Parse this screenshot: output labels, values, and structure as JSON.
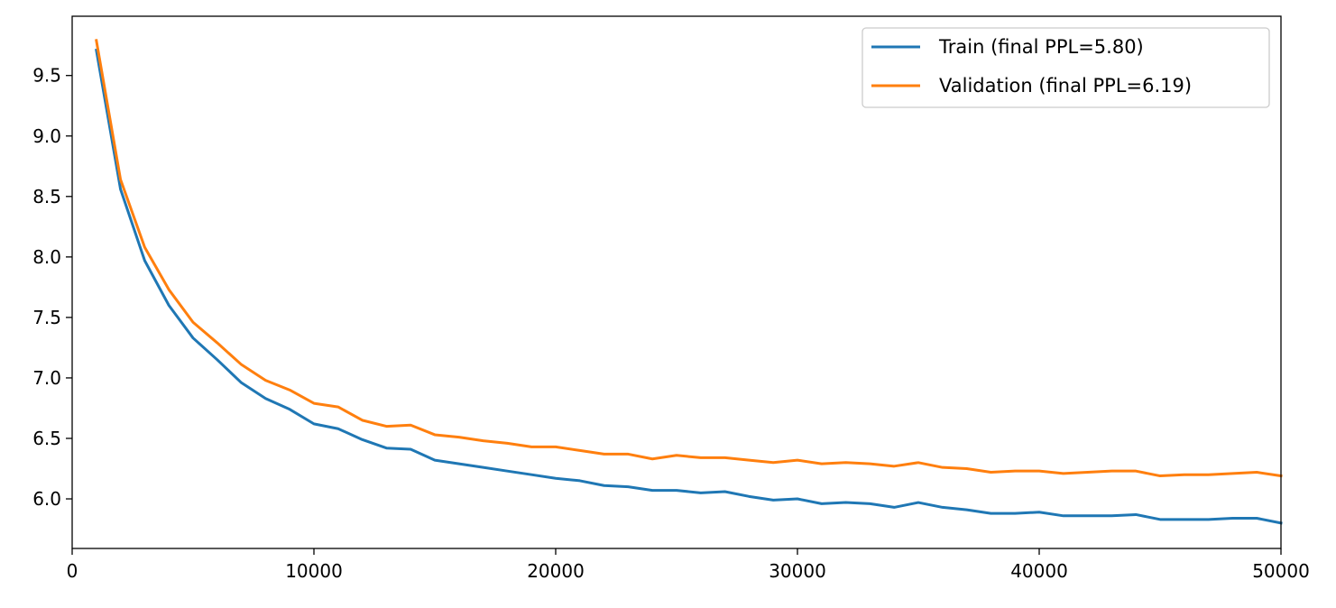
{
  "chart_data": {
    "type": "line",
    "title": "",
    "xlabel": "",
    "ylabel": "",
    "xlim": [
      0,
      50000
    ],
    "ylim": [
      5.59,
      9.99
    ],
    "grid": false,
    "legend_position": "top-right",
    "xticks": [
      0,
      10000,
      20000,
      30000,
      40000,
      50000
    ],
    "yticks": [
      6.0,
      6.5,
      7.0,
      7.5,
      8.0,
      8.5,
      9.0,
      9.5
    ],
    "xtick_labels": [
      "0",
      "10000",
      "20000",
      "30000",
      "40000",
      "50000"
    ],
    "ytick_labels": [
      "6.0",
      "6.5",
      "7.0",
      "7.5",
      "8.0",
      "8.5",
      "9.0",
      "9.5"
    ],
    "x": [
      1000,
      2000,
      3000,
      4000,
      5000,
      6000,
      7000,
      8000,
      9000,
      10000,
      11000,
      12000,
      13000,
      14000,
      15000,
      16000,
      17000,
      18000,
      19000,
      20000,
      21000,
      22000,
      23000,
      24000,
      25000,
      26000,
      27000,
      28000,
      29000,
      30000,
      31000,
      32000,
      33000,
      34000,
      35000,
      36000,
      37000,
      38000,
      39000,
      40000,
      41000,
      42000,
      43000,
      44000,
      45000,
      46000,
      47000,
      48000,
      49000,
      50000
    ],
    "series": [
      {
        "name": "Train (final PPL=5.80)",
        "color": "#1f77b4",
        "values": [
          9.71,
          8.56,
          7.97,
          7.6,
          7.33,
          7.15,
          6.96,
          6.83,
          6.74,
          6.62,
          6.58,
          6.49,
          6.42,
          6.41,
          6.32,
          6.29,
          6.26,
          6.23,
          6.2,
          6.17,
          6.15,
          6.11,
          6.1,
          6.07,
          6.07,
          6.05,
          6.06,
          6.02,
          5.99,
          6.0,
          5.96,
          5.97,
          5.96,
          5.93,
          5.97,
          5.93,
          5.91,
          5.88,
          5.88,
          5.89,
          5.86,
          5.86,
          5.86,
          5.87,
          5.83,
          5.83,
          5.83,
          5.84,
          5.84,
          5.8
        ]
      },
      {
        "name": "Validation (final PPL=6.19)",
        "color": "#ff7f0e",
        "values": [
          9.79,
          8.64,
          8.08,
          7.73,
          7.46,
          7.29,
          7.11,
          6.98,
          6.9,
          6.79,
          6.76,
          6.65,
          6.6,
          6.61,
          6.53,
          6.51,
          6.48,
          6.46,
          6.43,
          6.43,
          6.4,
          6.37,
          6.37,
          6.33,
          6.36,
          6.34,
          6.34,
          6.32,
          6.3,
          6.32,
          6.29,
          6.3,
          6.29,
          6.27,
          6.3,
          6.26,
          6.25,
          6.22,
          6.23,
          6.23,
          6.21,
          6.22,
          6.23,
          6.23,
          6.19,
          6.2,
          6.2,
          6.21,
          6.22,
          6.19
        ]
      }
    ]
  }
}
